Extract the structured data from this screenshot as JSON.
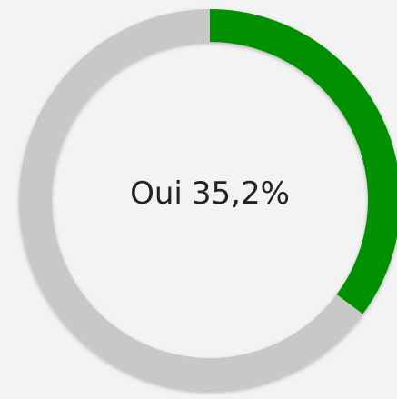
{
  "chart_data": {
    "type": "pie",
    "donut": true,
    "categories": [
      "Oui",
      null
    ],
    "values": [
      35.2,
      64.8
    ],
    "value_labels": [
      "35,2%",
      null
    ],
    "colors": [
      "#009000",
      "#c8c8c8"
    ]
  }
}
